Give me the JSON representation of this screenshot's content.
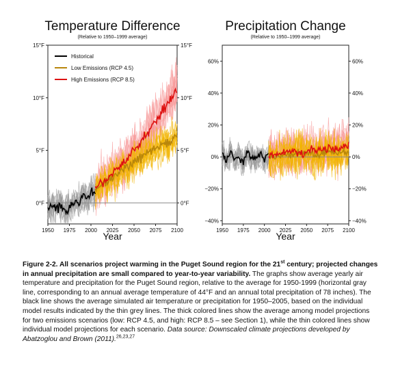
{
  "chart_data": [
    {
      "type": "line",
      "title": "Temperature Difference",
      "subtitle": "(Relative to 1950–1999 average)",
      "xlabel": "Year",
      "ylabel": "",
      "xlim": [
        1950,
        2100
      ],
      "ylim": [
        -2,
        15
      ],
      "x_ticks": [
        "1950",
        "1975",
        "2000",
        "2025",
        "2050",
        "2075",
        "2100"
      ],
      "y_ticks_left": [
        "15°F",
        "10°F",
        "5°F",
        "0°F"
      ],
      "y_ticks_right": [
        "15°F",
        "10°F",
        "5°F",
        "0°F"
      ],
      "legend_position": "top-left",
      "legend": [
        "Historical",
        "Low Emissions (RCP 4.5)",
        "High Emissions (RCP 8.5)"
      ],
      "reference_line_y": 0,
      "series": [
        {
          "name": "Historical",
          "color": "#000000",
          "x": [
            1950,
            1955,
            1960,
            1965,
            1970,
            1975,
            1980,
            1985,
            1990,
            1995,
            2000,
            2005
          ],
          "y": [
            -0.5,
            -0.2,
            -0.6,
            -0.3,
            -0.8,
            -0.5,
            0.2,
            -0.1,
            0.6,
            0.4,
            1.0,
            1.3
          ]
        },
        {
          "name": "Low Emissions (RCP 4.5)",
          "color": "#b8860b",
          "x": [
            2005,
            2015,
            2025,
            2035,
            2045,
            2055,
            2065,
            2075,
            2085,
            2095,
            2100
          ],
          "y": [
            1.3,
            1.8,
            2.4,
            3.0,
            3.6,
            4.2,
            4.7,
            5.2,
            5.6,
            6.0,
            6.3
          ]
        },
        {
          "name": "High Emissions (RCP 8.5)",
          "color": "#dd1111",
          "x": [
            2005,
            2015,
            2025,
            2035,
            2045,
            2055,
            2065,
            2075,
            2085,
            2095,
            2100
          ],
          "y": [
            1.3,
            2.0,
            2.8,
            3.6,
            4.5,
            5.5,
            6.6,
            7.8,
            9.0,
            10.2,
            10.9
          ]
        }
      ]
    },
    {
      "type": "line",
      "title": "Precipitation Change",
      "subtitle": "(Relative to 1950–1999 average)",
      "xlabel": "Year",
      "ylabel": "",
      "xlim": [
        1950,
        2100
      ],
      "ylim": [
        -42,
        70
      ],
      "x_ticks": [
        "1950",
        "1975",
        "2000",
        "2025",
        "2050",
        "2075",
        "2100"
      ],
      "y_ticks_left": [
        "60%",
        "40%",
        "20%",
        "0%",
        "−20%",
        "−40%"
      ],
      "y_ticks_right": [
        "60%",
        "40%",
        "20%",
        "0%",
        "−20%",
        "−40%"
      ],
      "reference_line_y": 0,
      "series": [
        {
          "name": "Historical",
          "color": "#000000",
          "x": [
            1950,
            1955,
            1960,
            1965,
            1970,
            1975,
            1980,
            1985,
            1990,
            1995,
            2000,
            2005
          ],
          "y": [
            2,
            -3,
            4,
            -2,
            1,
            -4,
            3,
            0,
            -2,
            2,
            -1,
            1
          ]
        },
        {
          "name": "Low Emissions (RCP 4.5)",
          "color": "#b8860b",
          "x": [
            2005,
            2015,
            2025,
            2035,
            2045,
            2055,
            2065,
            2075,
            2085,
            2095,
            2100
          ],
          "y": [
            1,
            0,
            2,
            1,
            3,
            2,
            1,
            3,
            2,
            4,
            3
          ]
        },
        {
          "name": "High Emissions (RCP 8.5)",
          "color": "#dd1111",
          "x": [
            2005,
            2015,
            2025,
            2035,
            2045,
            2055,
            2065,
            2075,
            2085,
            2095,
            2100
          ],
          "y": [
            1,
            2,
            3,
            4,
            2,
            5,
            4,
            6,
            5,
            7,
            8
          ]
        }
      ]
    }
  ],
  "caption": {
    "bold1": "Figure 2-2. All scenarios project warming in the Puget Sound region for the 21",
    "bold_sup": "st",
    "bold2": " century; projected changes in annual precipitation are small compared to year-to-year variability.",
    "body": " The graphs show average yearly air temperature and precipitation for the Puget Sound region, relative to the average for 1950-1999 (horizontal gray line, corresponding to an annual average temperature of 44°F and an annual total precipitation of 78 inches). The black line shows the average simulated air temperature or precipitation for 1950–2005, based on the individual model results indicated by the thin grey lines. The thick colored lines show the average among model projections for two emissions scenarios (low: RCP 4.5, and high: RCP 8.5 – see Section 1), while the thin colored lines show individual model projections for each scenario. ",
    "italic": "Data source: Downscaled climate projections developed by Abatzoglou and Brown (2011).",
    "refs": "26,23,27"
  }
}
